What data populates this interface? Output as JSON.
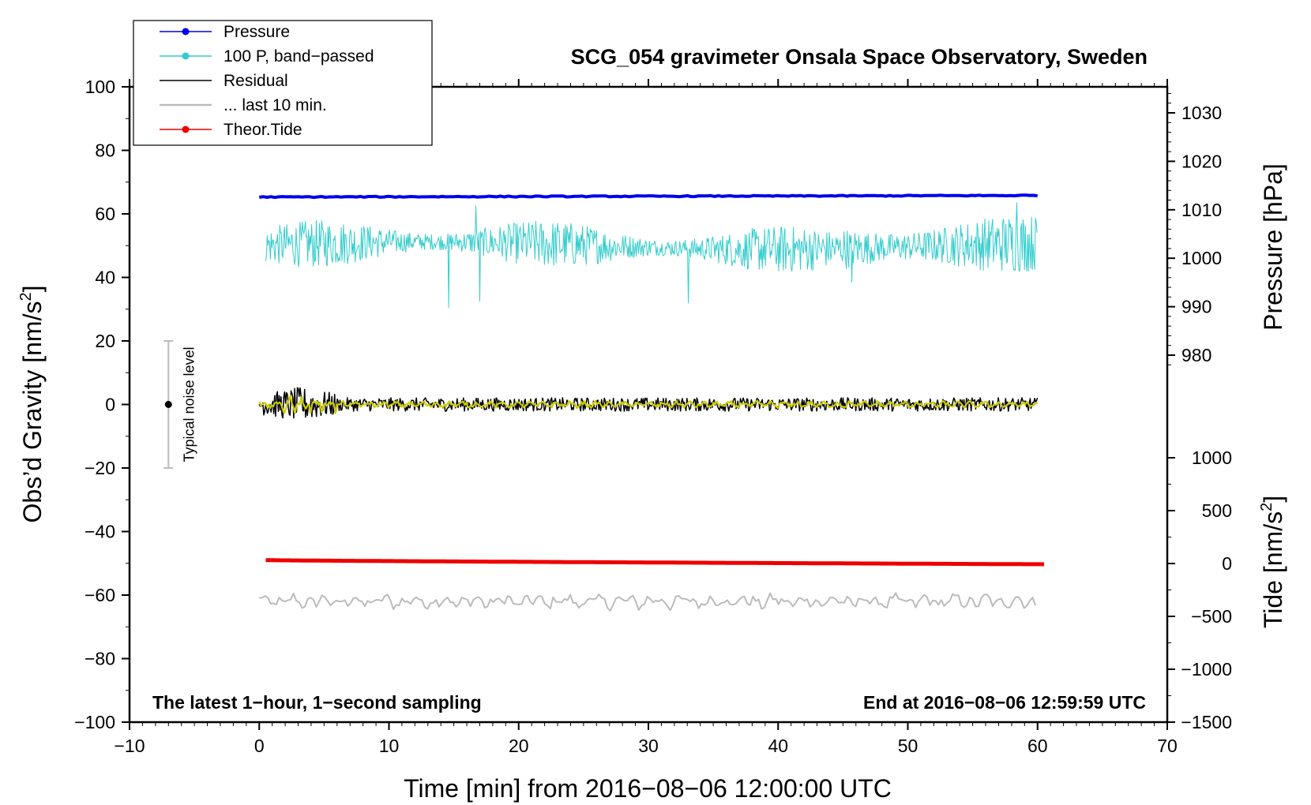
{
  "chart_data": {
    "type": "line",
    "title": "SCG_054 gravimeter Onsala Space Observatory, Sweden",
    "xlabel": "Time [min] from 2016−08−06 12:00:00 UTC",
    "ylabel_left": "Obs’d Gravity [nm/s",
    "ylabel_left_sup": "2",
    "ylabel_left_end": "]",
    "ylabel_right_pressure": "Pressure [hPa]",
    "ylabel_right_tide": "Tide [nm/s",
    "ylabel_right_tide_sup": "2",
    "ylabel_right_tide_end": "]",
    "xlim": [
      -10,
      70
    ],
    "ylim": [
      -100,
      100
    ],
    "x_ticks": [
      -10,
      0,
      10,
      20,
      30,
      40,
      50,
      60,
      70
    ],
    "x_tick_labels": [
      "−10",
      "0",
      "10",
      "20",
      "30",
      "40",
      "50",
      "60",
      "70"
    ],
    "y_ticks": [
      100,
      80,
      60,
      40,
      20,
      0,
      -20,
      -40,
      -60,
      -80,
      -100
    ],
    "y_tick_labels": [
      "100",
      "80",
      "60",
      "40",
      "20",
      "0",
      "−20",
      "−40",
      "−60",
      "−80",
      "−100"
    ],
    "pressure_axis": {
      "range_hpa": [
        955,
        1037
      ],
      "ticks": [
        1030,
        1020,
        1010,
        1000,
        990,
        980
      ],
      "tick_labels": [
        "1030",
        "1020",
        "1010",
        "1000",
        "990",
        "980"
      ]
    },
    "tide_axis": {
      "range_nm_s2": [
        -1500,
        1500
      ],
      "ticks": [
        1000,
        500,
        0,
        -500,
        -1000,
        -1500
      ],
      "tick_labels": [
        "1000",
        "500",
        "0",
        "−500",
        "−1000",
        "−1500"
      ]
    },
    "legend": {
      "position": "top-left",
      "entries": [
        {
          "label": "Pressure",
          "color": "#0000ee",
          "marker": true
        },
        {
          "label": "100 P, band−passed",
          "color": "#33cccc",
          "marker": true
        },
        {
          "label": "Residual",
          "color": "#000000",
          "marker": false
        },
        {
          "label": "... last 10 min.",
          "color": "#bbbbbb",
          "marker": false
        },
        {
          "label": "Theor.Tide",
          "color": "#ee0000",
          "marker": true
        }
      ]
    },
    "series": [
      {
        "name": "Pressure",
        "color": "#0000ee",
        "x_range": [
          0,
          60
        ],
        "y_start": 65.3,
        "y_end": 65.8,
        "noise_amplitude": 0.3,
        "style": "thick"
      },
      {
        "name": "100 P, band−passed",
        "color": "#33cccc",
        "x_range": [
          0.5,
          60
        ],
        "y_mean": 50,
        "amplitude": 5,
        "min": 30.5,
        "max": 63.5,
        "style": "thin"
      },
      {
        "name": "Residual",
        "color": "#000000",
        "x_range": [
          0,
          60
        ],
        "y_mean": 0,
        "amplitude": 2.5,
        "min": -7.5,
        "max": 8.5,
        "style": "thin"
      },
      {
        "name": "Residual smoothed",
        "color": "#cccc00",
        "x_range": [
          0,
          60
        ],
        "y_mean": 0,
        "amplitude": 1.2,
        "style": "medium"
      },
      {
        "name": "Theor.Tide",
        "color": "#ee0000",
        "x_range": [
          0.5,
          60.5
        ],
        "y_start": -49,
        "y_end": -50.3,
        "style": "thick"
      },
      {
        "name": "... last 10 min.",
        "color": "#bbbbbb",
        "x_range": [
          0,
          60
        ],
        "y_mean": -62,
        "amplitude": 2,
        "min": -65,
        "max": -58,
        "style": "medium"
      }
    ],
    "noise_bar": {
      "x": -7,
      "y_center": 0,
      "y_low": -20,
      "y_high": 20,
      "label": "Typical noise level"
    },
    "annotations": {
      "bottom_left": "The latest 1−hour, 1−second sampling",
      "bottom_right": "End at 2016−08−06 12:59:59 UTC"
    }
  }
}
